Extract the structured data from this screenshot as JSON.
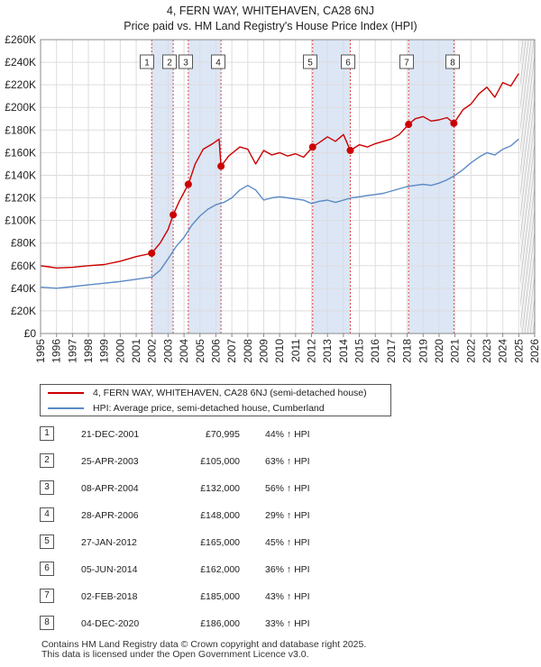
{
  "title": {
    "line1": "4, FERN WAY, WHITEHAVEN, CA28 6NJ",
    "line2": "Price paid vs. HM Land Registry's House Price Index (HPI)"
  },
  "colors": {
    "property": "#cc0000",
    "hpi": "#5b8ac6",
    "shade": "#dce6f5",
    "sale_line": "#dd4444"
  },
  "chart_data": {
    "type": "line",
    "title": "Price paid vs. HM Land Registry's House Price Index (HPI)",
    "xlabel": "",
    "ylabel": "",
    "xlim": [
      1995,
      2026
    ],
    "ylim": [
      0,
      260000
    ],
    "grid": true,
    "y_ticks": [
      0,
      20000,
      40000,
      60000,
      80000,
      100000,
      120000,
      140000,
      160000,
      180000,
      200000,
      220000,
      240000,
      260000
    ],
    "y_tick_labels": [
      "£0",
      "£20K",
      "£40K",
      "£60K",
      "£80K",
      "£100K",
      "£120K",
      "£140K",
      "£160K",
      "£180K",
      "£200K",
      "£220K",
      "£240K",
      "£260K"
    ],
    "x_ticks": [
      1995,
      1996,
      1997,
      1998,
      1999,
      2000,
      2001,
      2002,
      2003,
      2004,
      2005,
      2006,
      2007,
      2008,
      2009,
      2010,
      2011,
      2012,
      2013,
      2014,
      2015,
      2016,
      2017,
      2018,
      2019,
      2020,
      2021,
      2022,
      2023,
      2024,
      2025,
      2026
    ],
    "x_tick_labels": [
      "1995",
      "1996",
      "1997",
      "1998",
      "1999",
      "2000",
      "2001",
      "2002",
      "2003",
      "2004",
      "2005",
      "2006",
      "2007",
      "2008",
      "2009",
      "2010",
      "2011",
      "2012",
      "2013",
      "2014",
      "2015",
      "2016",
      "2017",
      "2018",
      "2019",
      "2020",
      "2021",
      "2022",
      "2023",
      "2024",
      "2025",
      "2026"
    ],
    "forecast_start": 2025.1,
    "series": [
      {
        "name": "4, FERN WAY, WHITEHAVEN, CA28 6NJ (semi-detached house)",
        "x": [
          1995.0,
          1995.5,
          1996.0,
          1997.0,
          1998.0,
          1999.0,
          2000.0,
          2001.0,
          2001.97,
          2002.5,
          2003.0,
          2003.32,
          2003.7,
          2004.27,
          2004.7,
          2005.2,
          2005.8,
          2006.2,
          2006.32,
          2006.8,
          2007.5,
          2008.0,
          2008.5,
          2009.0,
          2009.5,
          2010.0,
          2010.5,
          2011.0,
          2011.5,
          2012.07,
          2012.6,
          2013.0,
          2013.5,
          2014.0,
          2014.43,
          2015.0,
          2015.5,
          2016.0,
          2016.5,
          2017.0,
          2017.5,
          2018.09,
          2018.5,
          2019.0,
          2019.5,
          2020.0,
          2020.5,
          2020.93,
          2021.5,
          2022.0,
          2022.5,
          2023.0,
          2023.5,
          2024.0,
          2024.5,
          2025.0
        ],
        "values": [
          60000,
          59000,
          58000,
          58500,
          60000,
          61000,
          64000,
          68000,
          70995,
          80000,
          92000,
          105000,
          117000,
          132000,
          150000,
          163000,
          168000,
          172000,
          148000,
          157000,
          165000,
          163000,
          150000,
          162000,
          158000,
          160000,
          157000,
          159000,
          156000,
          165000,
          170000,
          174000,
          170000,
          176000,
          162000,
          167000,
          165000,
          168000,
          170000,
          172000,
          176000,
          185000,
          190000,
          192000,
          188000,
          189000,
          191000,
          186000,
          198000,
          203000,
          212000,
          218000,
          209000,
          222000,
          219000,
          230000
        ]
      },
      {
        "name": "HPI: Average price, semi-detached house, Cumberland",
        "x": [
          1995.0,
          1996.0,
          1997.0,
          1998.0,
          1999.0,
          2000.0,
          2001.0,
          2002.0,
          2002.5,
          2003.0,
          2003.5,
          2004.0,
          2004.5,
          2005.0,
          2005.5,
          2006.0,
          2006.5,
          2007.0,
          2007.5,
          2008.0,
          2008.5,
          2009.0,
          2009.5,
          2010.0,
          2010.5,
          2011.0,
          2011.5,
          2012.0,
          2012.5,
          2013.0,
          2013.5,
          2014.0,
          2014.5,
          2015.0,
          2015.5,
          2016.0,
          2016.5,
          2017.0,
          2017.5,
          2018.0,
          2018.5,
          2019.0,
          2019.5,
          2020.0,
          2020.5,
          2021.0,
          2021.5,
          2022.0,
          2022.5,
          2023.0,
          2023.5,
          2024.0,
          2024.5,
          2025.0
        ],
        "values": [
          41000,
          40000,
          41500,
          43000,
          44500,
          46000,
          48000,
          50000,
          56000,
          66000,
          77000,
          85000,
          96000,
          104000,
          110000,
          114000,
          116000,
          120000,
          127000,
          131000,
          127000,
          118000,
          120000,
          121000,
          120000,
          119000,
          118000,
          115000,
          117000,
          118000,
          116000,
          118000,
          120000,
          121000,
          122000,
          123000,
          124000,
          126000,
          128000,
          130000,
          131000,
          132000,
          131000,
          133000,
          136000,
          140000,
          145000,
          151000,
          156000,
          160000,
          158000,
          163000,
          166000,
          172000
        ]
      }
    ],
    "sales": [
      {
        "label": "1",
        "x": 2001.97,
        "value": 70995
      },
      {
        "label": "2",
        "x": 2003.32,
        "value": 105000
      },
      {
        "label": "3",
        "x": 2004.27,
        "value": 132000
      },
      {
        "label": "4",
        "x": 2006.32,
        "value": 148000
      },
      {
        "label": "5",
        "x": 2012.07,
        "value": 165000
      },
      {
        "label": "6",
        "x": 2014.43,
        "value": 162000
      },
      {
        "label": "7",
        "x": 2018.09,
        "value": 185000
      },
      {
        "label": "8",
        "x": 2020.93,
        "value": 186000
      }
    ],
    "shaded_spans": [
      [
        2001.97,
        2003.32
      ],
      [
        2004.27,
        2006.32
      ],
      [
        2012.07,
        2014.43
      ],
      [
        2018.09,
        2020.93
      ]
    ]
  },
  "legend": {
    "items": [
      {
        "label": "4, FERN WAY, WHITEHAVEN, CA28 6NJ (semi-detached house)"
      },
      {
        "label": "HPI: Average price, semi-detached house, Cumberland"
      }
    ]
  },
  "sales_table": [
    {
      "num": "1",
      "date": "21-DEC-2001",
      "price": "£70,995",
      "hpi": "44% ↑ HPI"
    },
    {
      "num": "2",
      "date": "25-APR-2003",
      "price": "£105,000",
      "hpi": "63% ↑ HPI"
    },
    {
      "num": "3",
      "date": "08-APR-2004",
      "price": "£132,000",
      "hpi": "56% ↑ HPI"
    },
    {
      "num": "4",
      "date": "28-APR-2006",
      "price": "£148,000",
      "hpi": "29% ↑ HPI"
    },
    {
      "num": "5",
      "date": "27-JAN-2012",
      "price": "£165,000",
      "hpi": "45% ↑ HPI"
    },
    {
      "num": "6",
      "date": "05-JUN-2014",
      "price": "£162,000",
      "hpi": "36% ↑ HPI"
    },
    {
      "num": "7",
      "date": "02-FEB-2018",
      "price": "£185,000",
      "hpi": "43% ↑ HPI"
    },
    {
      "num": "8",
      "date": "04-DEC-2020",
      "price": "£186,000",
      "hpi": "33% ↑ HPI"
    }
  ],
  "footer": {
    "line1": "Contains HM Land Registry data © Crown copyright and database right 2025.",
    "line2": "This data is licensed under the Open Government Licence v3.0."
  }
}
